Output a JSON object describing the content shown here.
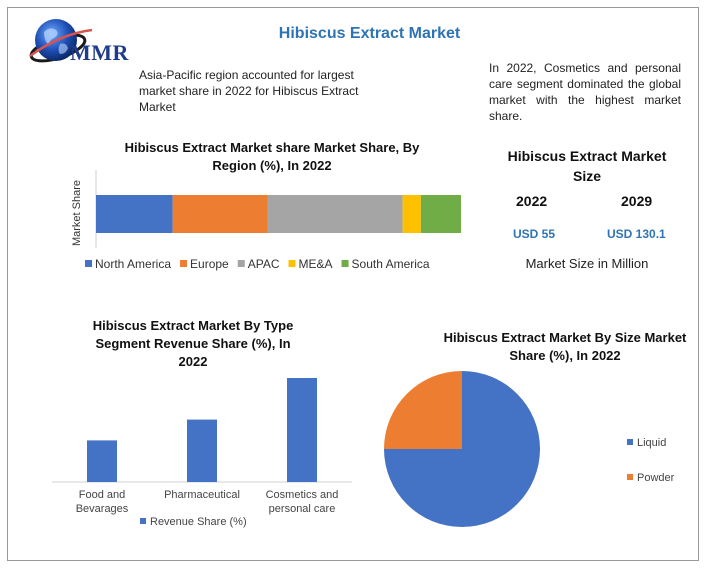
{
  "header": {
    "brand": "MMR",
    "title": "Hibiscus Extract Market"
  },
  "notes": {
    "left": "Asia-Pacific region accounted for largest market share in 2022 for Hibiscus Extract Market",
    "right": "In 2022, Cosmetics and personal care segment dominated the global market with the highest market share."
  },
  "market_size": {
    "title": "Hibiscus Extract Market Size",
    "year_a": "2022",
    "year_b": "2029",
    "value_a": "USD 55",
    "value_b": "USD 130.1",
    "unit": "Market Size in Million"
  },
  "colors": {
    "title_blue": "#2e74b5",
    "north_america": "#4472c4",
    "europe": "#ed7d31",
    "apac": "#a5a5a5",
    "mea": "#ffc000",
    "south_america": "#70ad47",
    "bar_blue": "#4472c4"
  },
  "chart_data": [
    {
      "type": "bar",
      "orientation": "horizontal-stacked",
      "title": "Hibiscus Extract Market share Market Share, By Region (%), In 2022",
      "ylabel": "Market Share",
      "legend_position": "bottom",
      "series": [
        {
          "name": "North America",
          "values": [
            21
          ]
        },
        {
          "name": "Europe",
          "values": [
            26
          ]
        },
        {
          "name": "APAC",
          "values": [
            37
          ]
        },
        {
          "name": "ME&A",
          "values": [
            5
          ]
        },
        {
          "name": "South America",
          "values": [
            11
          ]
        }
      ],
      "xlim": [
        0,
        100
      ],
      "grid": false
    },
    {
      "type": "bar",
      "title": "Hibiscus Extract Market By Type Segment Revenue Share (%), In 2022",
      "categories": [
        "Food and Bevarages",
        "Pharmaceutical",
        "Cosmetics and personal care"
      ],
      "series": [
        {
          "name": "Revenue Share (%)",
          "values": [
            20,
            30,
            50
          ]
        }
      ],
      "ylim": [
        0,
        50
      ],
      "legend_position": "bottom",
      "grid": false
    },
    {
      "type": "pie",
      "title": "Hibiscus Extract Market By Size Market Share (%), In 2022",
      "labels": [
        "Liquid",
        "Powder"
      ],
      "values": [
        75,
        25
      ],
      "legend_position": "right"
    }
  ]
}
